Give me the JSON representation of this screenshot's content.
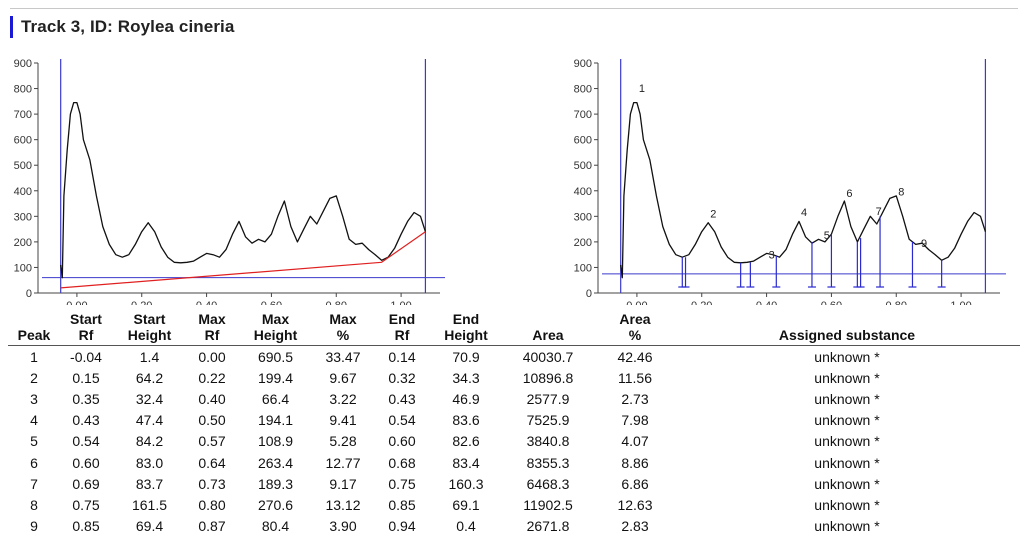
{
  "title": "Track 3, ID: Roylea cineria",
  "colors": {
    "accent": "#1a1ad6",
    "curve": "#111111",
    "baseline": "#e02020",
    "cursor": "#3a3acc",
    "peak_marker": "#2a2ad0"
  },
  "chart_data": [
    {
      "type": "line",
      "name": "raw-densitogram",
      "x_ticks": [
        "0.00",
        "0.20",
        "0.40",
        "0.60",
        "0.80",
        "1.00"
      ],
      "y_ticks": [
        "0",
        "100",
        "200",
        "300",
        "400",
        "500",
        "600",
        "700",
        "800",
        "900"
      ],
      "xlim": [
        -0.12,
        1.12
      ],
      "ylim": [
        0,
        900
      ],
      "series": [
        {
          "x": [
            -0.05,
            -0.045,
            -0.04,
            -0.03,
            -0.02,
            -0.01,
            0.0,
            0.01,
            0.02,
            0.04,
            0.06,
            0.08,
            0.1,
            0.12,
            0.14,
            0.16,
            0.18,
            0.2,
            0.22,
            0.24,
            0.26,
            0.28,
            0.3,
            0.32,
            0.34,
            0.36,
            0.38,
            0.4,
            0.42,
            0.44,
            0.46,
            0.48,
            0.5,
            0.52,
            0.54,
            0.56,
            0.58,
            0.6,
            0.62,
            0.64,
            0.66,
            0.68,
            0.7,
            0.72,
            0.74,
            0.76,
            0.78,
            0.8,
            0.82,
            0.84,
            0.86,
            0.88,
            0.9,
            0.92,
            0.94,
            0.96,
            0.98,
            1.0,
            1.02,
            1.04,
            1.06,
            1.075
          ],
          "y": [
            110,
            60,
            380,
            560,
            700,
            745,
            745,
            700,
            600,
            520,
            380,
            260,
            190,
            150,
            140,
            150,
            190,
            240,
            275,
            240,
            180,
            140,
            120,
            118,
            120,
            125,
            140,
            155,
            150,
            140,
            170,
            230,
            280,
            220,
            195,
            210,
            200,
            230,
            300,
            360,
            260,
            200,
            250,
            300,
            270,
            320,
            370,
            380,
            300,
            210,
            190,
            195,
            170,
            150,
            128,
            140,
            175,
            230,
            280,
            315,
            300,
            240
          ]
        },
        {
          "name": "baseline",
          "x": [
            -0.05,
            0.94,
            1.075
          ],
          "y": [
            20,
            120,
            240
          ]
        }
      ],
      "cursors_x": [
        -0.05,
        1.075
      ],
      "horizontal_cursor_y": 60
    },
    {
      "type": "line",
      "name": "integrated-peaks",
      "x_ticks": [
        "0.00",
        "0.20",
        "0.40",
        "0.60",
        "0.80",
        "1.00"
      ],
      "y_ticks": [
        "0",
        "100",
        "200",
        "300",
        "400",
        "500",
        "600",
        "700",
        "800",
        "900"
      ],
      "xlim": [
        -0.12,
        1.12
      ],
      "ylim": [
        0,
        900
      ],
      "series": [
        {
          "x": [
            -0.05,
            -0.045,
            -0.04,
            -0.03,
            -0.02,
            -0.01,
            0.0,
            0.01,
            0.02,
            0.04,
            0.06,
            0.08,
            0.1,
            0.12,
            0.14,
            0.16,
            0.18,
            0.2,
            0.22,
            0.24,
            0.26,
            0.28,
            0.3,
            0.32,
            0.34,
            0.36,
            0.38,
            0.4,
            0.42,
            0.44,
            0.46,
            0.48,
            0.5,
            0.52,
            0.54,
            0.56,
            0.58,
            0.6,
            0.62,
            0.64,
            0.66,
            0.68,
            0.7,
            0.72,
            0.74,
            0.76,
            0.78,
            0.8,
            0.82,
            0.84,
            0.86,
            0.88,
            0.9,
            0.92,
            0.94,
            0.96,
            0.98,
            1.0,
            1.02,
            1.04,
            1.06,
            1.075
          ],
          "y": [
            110,
            60,
            380,
            560,
            700,
            745,
            745,
            700,
            600,
            520,
            380,
            260,
            190,
            150,
            140,
            150,
            190,
            240,
            275,
            240,
            180,
            140,
            120,
            118,
            120,
            125,
            140,
            155,
            150,
            140,
            170,
            230,
            280,
            220,
            195,
            210,
            200,
            230,
            300,
            360,
            260,
            200,
            250,
            300,
            270,
            320,
            370,
            380,
            300,
            210,
            190,
            195,
            170,
            150,
            128,
            140,
            175,
            230,
            280,
            315,
            300,
            240
          ]
        }
      ],
      "peak_labels": [
        "1",
        "2",
        "3",
        "4",
        "5",
        "6",
        "7",
        "8",
        "9"
      ],
      "peak_rf": [
        0.0,
        0.22,
        0.4,
        0.5,
        0.57,
        0.64,
        0.73,
        0.8,
        0.87
      ],
      "peak_label_y": [
        770,
        280,
        120,
        285,
        195,
        360,
        290,
        365,
        165
      ],
      "boundaries": [
        {
          "x": 0.14,
          "y": 140
        },
        {
          "x": 0.15,
          "y": 140
        },
        {
          "x": 0.32,
          "y": 118
        },
        {
          "x": 0.35,
          "y": 120
        },
        {
          "x": 0.43,
          "y": 145
        },
        {
          "x": 0.54,
          "y": 200
        },
        {
          "x": 0.6,
          "y": 230
        },
        {
          "x": 0.68,
          "y": 200
        },
        {
          "x": 0.69,
          "y": 215
        },
        {
          "x": 0.75,
          "y": 300
        },
        {
          "x": 0.85,
          "y": 200
        },
        {
          "x": 0.94,
          "y": 128
        }
      ],
      "cursors_x": [
        -0.05,
        1.075
      ],
      "horizontal_cursor_y": 75
    }
  ],
  "table": {
    "headers": [
      [
        "",
        "Peak"
      ],
      [
        "Start",
        "Rf"
      ],
      [
        "Start",
        "Height"
      ],
      [
        "Max",
        "Rf"
      ],
      [
        "Max",
        "Height"
      ],
      [
        "Max",
        "%"
      ],
      [
        "End",
        "Rf"
      ],
      [
        "End",
        "Height"
      ],
      [
        "",
        "Area"
      ],
      [
        "Area",
        "%"
      ],
      [
        "",
        "Assigned substance"
      ]
    ],
    "rows": [
      [
        "1",
        "-0.04",
        "1.4",
        "0.00",
        "690.5",
        "33.47",
        "0.14",
        "70.9",
        "40030.7",
        "42.46",
        "unknown *"
      ],
      [
        "2",
        "0.15",
        "64.2",
        "0.22",
        "199.4",
        "9.67",
        "0.32",
        "34.3",
        "10896.8",
        "11.56",
        "unknown *"
      ],
      [
        "3",
        "0.35",
        "32.4",
        "0.40",
        "66.4",
        "3.22",
        "0.43",
        "46.9",
        "2577.9",
        "2.73",
        "unknown *"
      ],
      [
        "4",
        "0.43",
        "47.4",
        "0.50",
        "194.1",
        "9.41",
        "0.54",
        "83.6",
        "7525.9",
        "7.98",
        "unknown *"
      ],
      [
        "5",
        "0.54",
        "84.2",
        "0.57",
        "108.9",
        "5.28",
        "0.60",
        "82.6",
        "3840.8",
        "4.07",
        "unknown *"
      ],
      [
        "6",
        "0.60",
        "83.0",
        "0.64",
        "263.4",
        "12.77",
        "0.68",
        "83.4",
        "8355.3",
        "8.86",
        "unknown *"
      ],
      [
        "7",
        "0.69",
        "83.7",
        "0.73",
        "189.3",
        "9.17",
        "0.75",
        "160.3",
        "6468.3",
        "6.86",
        "unknown *"
      ],
      [
        "8",
        "0.75",
        "161.5",
        "0.80",
        "270.6",
        "13.12",
        "0.85",
        "69.1",
        "11902.5",
        "12.63",
        "unknown *"
      ],
      [
        "9",
        "0.85",
        "69.4",
        "0.87",
        "80.4",
        "3.90",
        "0.94",
        "0.4",
        "2671.8",
        "2.83",
        "unknown *"
      ]
    ]
  }
}
